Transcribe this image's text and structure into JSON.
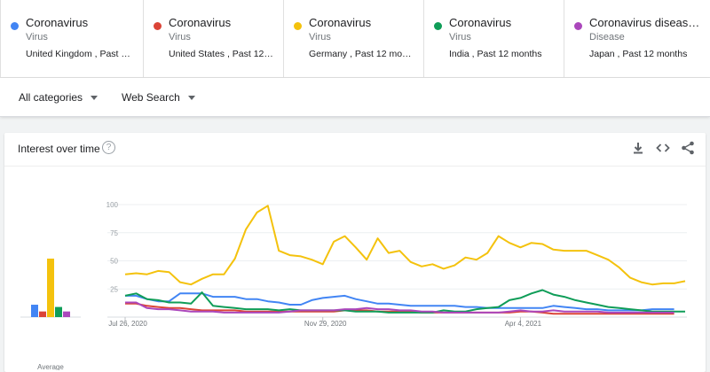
{
  "terms": [
    {
      "name": "Coronavirus",
      "type": "Virus",
      "location": "United Kingdom , Past …",
      "color": "#4285f4"
    },
    {
      "name": "Coronavirus",
      "type": "Virus",
      "location": "United States , Past 12…",
      "color": "#db4437"
    },
    {
      "name": "Coronavirus",
      "type": "Virus",
      "location": "Germany , Past 12 mo…",
      "color": "#f4c20d"
    },
    {
      "name": "Coronavirus",
      "type": "Virus",
      "location": "India , Past 12 months",
      "color": "#0f9d58"
    },
    {
      "name": "Coronavirus diseas…",
      "type": "Disease",
      "location": "Japan , Past 12 months",
      "color": "#ab47bc"
    }
  ],
  "filters": {
    "categories": "All categories",
    "search_type": "Web Search"
  },
  "card": {
    "title": "Interest over time",
    "help": "?",
    "icons": [
      "download-icon",
      "embed-icon",
      "share-icon"
    ]
  },
  "chart_data": {
    "type": "line",
    "ylim": [
      0,
      100
    ],
    "yticks": [
      "100",
      "75",
      "50",
      "25"
    ],
    "x_labels": [
      "Jul 26, 2020",
      "Nov 29, 2020",
      "Apr 4, 2021"
    ],
    "x_label_index": [
      0,
      18,
      36
    ],
    "averages_label": "Average",
    "averages": [
      11,
      5,
      52,
      9,
      5
    ],
    "series": [
      {
        "color": "#4285f4",
        "values": [
          19,
          19,
          16,
          14,
          14,
          21,
          21,
          21,
          18,
          18,
          18,
          16,
          16,
          14,
          13,
          11,
          11,
          15,
          17,
          18,
          19,
          16,
          14,
          12,
          12,
          11,
          10,
          10,
          10,
          10,
          10,
          9,
          9,
          8,
          8,
          8,
          8,
          8,
          8,
          10,
          9,
          8,
          7,
          7,
          6,
          6,
          6,
          6,
          7,
          7,
          7
        ]
      },
      {
        "color": "#db4437",
        "values": [
          12,
          12,
          10,
          9,
          8,
          8,
          7,
          6,
          6,
          6,
          6,
          5,
          5,
          5,
          5,
          5,
          5,
          5,
          5,
          5,
          6,
          6,
          6,
          5,
          5,
          5,
          5,
          4,
          4,
          4,
          4,
          4,
          4,
          4,
          4,
          4,
          5,
          5,
          4,
          3,
          3,
          3,
          3,
          3,
          3,
          3,
          3,
          3,
          3,
          3,
          3
        ]
      },
      {
        "color": "#f4c20d",
        "values": [
          38,
          39,
          38,
          41,
          40,
          31,
          29,
          34,
          38,
          38,
          52,
          78,
          93,
          99,
          59,
          55,
          54,
          51,
          47,
          67,
          72,
          62,
          51,
          70,
          57,
          59,
          49,
          45,
          47,
          43,
          46,
          53,
          51,
          57,
          72,
          66,
          62,
          66,
          65,
          60,
          59,
          59,
          59,
          55,
          51,
          44,
          35,
          31,
          29,
          30,
          30,
          32
        ]
      },
      {
        "color": "#0f9d58",
        "values": [
          19,
          21,
          16,
          15,
          13,
          13,
          12,
          22,
          10,
          9,
          8,
          7,
          7,
          7,
          6,
          7,
          6,
          6,
          6,
          6,
          6,
          5,
          5,
          5,
          4,
          4,
          4,
          4,
          4,
          6,
          5,
          5,
          7,
          8,
          9,
          15,
          17,
          21,
          24,
          20,
          18,
          15,
          13,
          11,
          9,
          8,
          7,
          6,
          5,
          5,
          5,
          5
        ]
      },
      {
        "color": "#ab47bc",
        "values": [
          13,
          13,
          8,
          7,
          7,
          6,
          5,
          5,
          5,
          4,
          4,
          4,
          4,
          4,
          4,
          5,
          6,
          6,
          6,
          6,
          7,
          7,
          8,
          7,
          7,
          6,
          6,
          5,
          5,
          4,
          4,
          4,
          4,
          4,
          4,
          5,
          6,
          5,
          5,
          6,
          5,
          5,
          5,
          5,
          4,
          4,
          4,
          4,
          4,
          4,
          4
        ]
      }
    ]
  }
}
